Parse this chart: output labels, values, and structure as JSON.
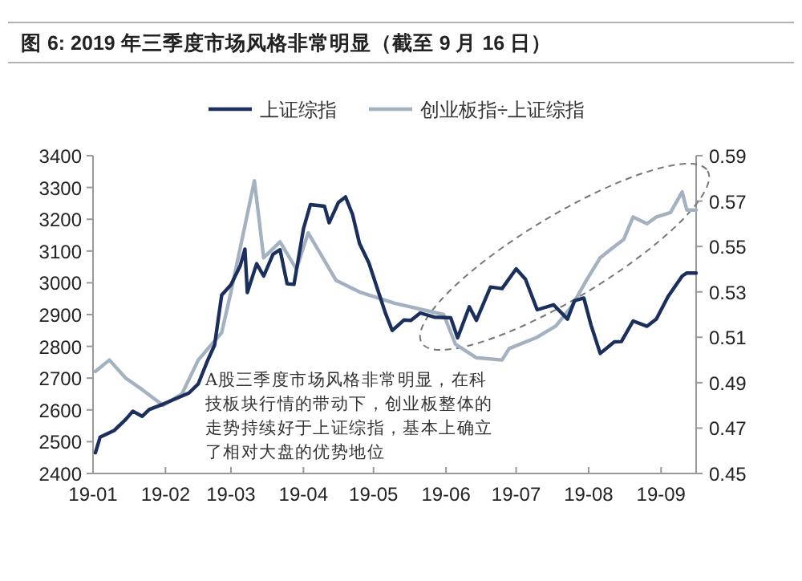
{
  "chart_data": {
    "type": "line",
    "title": "图 6: 2019 年三季度市场风格非常明显（截至 9 月 16 日）",
    "legend": "top",
    "grid": false,
    "line_style": "solid",
    "xlim": [
      "2019-01-01",
      "2019-09-16"
    ],
    "xticks": [
      {
        "value": "2019-01-01",
        "label": "19-01"
      },
      {
        "value": "2019-02-01",
        "label": "19-02"
      },
      {
        "value": "2019-03-01",
        "label": "19-03"
      },
      {
        "value": "2019-04-01",
        "label": "19-04"
      },
      {
        "value": "2019-05-01",
        "label": "19-05"
      },
      {
        "value": "2019-06-01",
        "label": "19-06"
      },
      {
        "value": "2019-07-01",
        "label": "19-07"
      },
      {
        "value": "2019-08-01",
        "label": "19-08"
      },
      {
        "value": "2019-09-01",
        "label": "19-09"
      }
    ],
    "ylim": [
      2400,
      3400
    ],
    "yticks": [
      2400,
      2500,
      2600,
      2700,
      2800,
      2900,
      3000,
      3100,
      3200,
      3300,
      3400
    ],
    "y2lim": [
      0.45,
      0.59
    ],
    "y2ticks": [
      0.45,
      0.47,
      0.49,
      0.51,
      0.53,
      0.55,
      0.57,
      0.59
    ],
    "annotations": [
      "A股三季度市场风格非常明显，在科技板块行情的带动下，创业板整体的走势持续好于上证综指，基本上确立了相对大盘的优势地位"
    ],
    "series": [
      {
        "name": "上证综指",
        "color": "#1b2f5c",
        "x": [
          "2019-01-02",
          "2019-01-04",
          "2019-01-10",
          "2019-01-15",
          "2019-01-18",
          "2019-01-22",
          "2019-01-25",
          "2019-01-31",
          "2019-02-11",
          "2019-02-15",
          "2019-02-19",
          "2019-02-22",
          "2019-02-25",
          "2019-03-01",
          "2019-03-05",
          "2019-03-07",
          "2019-03-08",
          "2019-03-12",
          "2019-03-15",
          "2019-03-19",
          "2019-03-22",
          "2019-03-25",
          "2019-03-28",
          "2019-04-01",
          "2019-04-04",
          "2019-04-10",
          "2019-04-12",
          "2019-04-16",
          "2019-04-19",
          "2019-04-22",
          "2019-04-25",
          "2019-04-29",
          "2019-05-06",
          "2019-05-09",
          "2019-05-14",
          "2019-05-17",
          "2019-05-21",
          "2019-05-27",
          "2019-06-03",
          "2019-06-06",
          "2019-06-11",
          "2019-06-14",
          "2019-06-20",
          "2019-06-25",
          "2019-07-01",
          "2019-07-05",
          "2019-07-10",
          "2019-07-17",
          "2019-07-23",
          "2019-07-26",
          "2019-07-30",
          "2019-08-02",
          "2019-08-06",
          "2019-08-12",
          "2019-08-15",
          "2019-08-20",
          "2019-08-26",
          "2019-08-30",
          "2019-09-04",
          "2019-09-10",
          "2019-09-12",
          "2019-09-16"
        ],
        "values": [
          2465,
          2514,
          2535,
          2570,
          2596,
          2580,
          2601,
          2618,
          2653,
          2682,
          2755,
          2804,
          2961,
          2994,
          3054,
          3106,
          2969,
          3060,
          3021,
          3090,
          3104,
          2997,
          2995,
          3170,
          3246,
          3241,
          3189,
          3253,
          3270,
          3215,
          3124,
          3062,
          2906,
          2850,
          2883,
          2882,
          2905,
          2892,
          2890,
          2827,
          2925,
          2882,
          2987,
          2982,
          3044,
          3011,
          2915,
          2931,
          2886,
          2944,
          2952,
          2868,
          2778,
          2814,
          2815,
          2880,
          2863,
          2886,
          2957,
          3021,
          3031,
          3031
        ]
      },
      {
        "name": "创业板指÷上证综指",
        "color": "#a3b1c0",
        "axis": "y2",
        "x": [
          "2019-01-02",
          "2019-01-08",
          "2019-01-15",
          "2019-01-22",
          "2019-01-31",
          "2019-02-08",
          "2019-02-15",
          "2019-02-25",
          "2019-03-01",
          "2019-03-11",
          "2019-03-15",
          "2019-03-22",
          "2019-03-29",
          "2019-04-03",
          "2019-04-15",
          "2019-04-25",
          "2019-05-10",
          "2019-05-31",
          "2019-06-05",
          "2019-06-14",
          "2019-06-25",
          "2019-06-28",
          "2019-07-10",
          "2019-07-18",
          "2019-07-25",
          "2019-07-31",
          "2019-08-06",
          "2019-08-12",
          "2019-08-16",
          "2019-08-20",
          "2019-08-26",
          "2019-08-30",
          "2019-09-05",
          "2019-09-10",
          "2019-09-12",
          "2019-09-16"
        ],
        "values": [
          0.495,
          0.5,
          0.492,
          0.487,
          0.48,
          0.485,
          0.5,
          0.512,
          0.53,
          0.579,
          0.545,
          0.552,
          0.54,
          0.556,
          0.535,
          0.53,
          0.525,
          0.52,
          0.507,
          0.501,
          0.5,
          0.505,
          0.51,
          0.515,
          0.524,
          0.535,
          0.545,
          0.55,
          0.553,
          0.563,
          0.56,
          0.563,
          0.565,
          0.574,
          0.566,
          0.566
        ]
      }
    ]
  }
}
